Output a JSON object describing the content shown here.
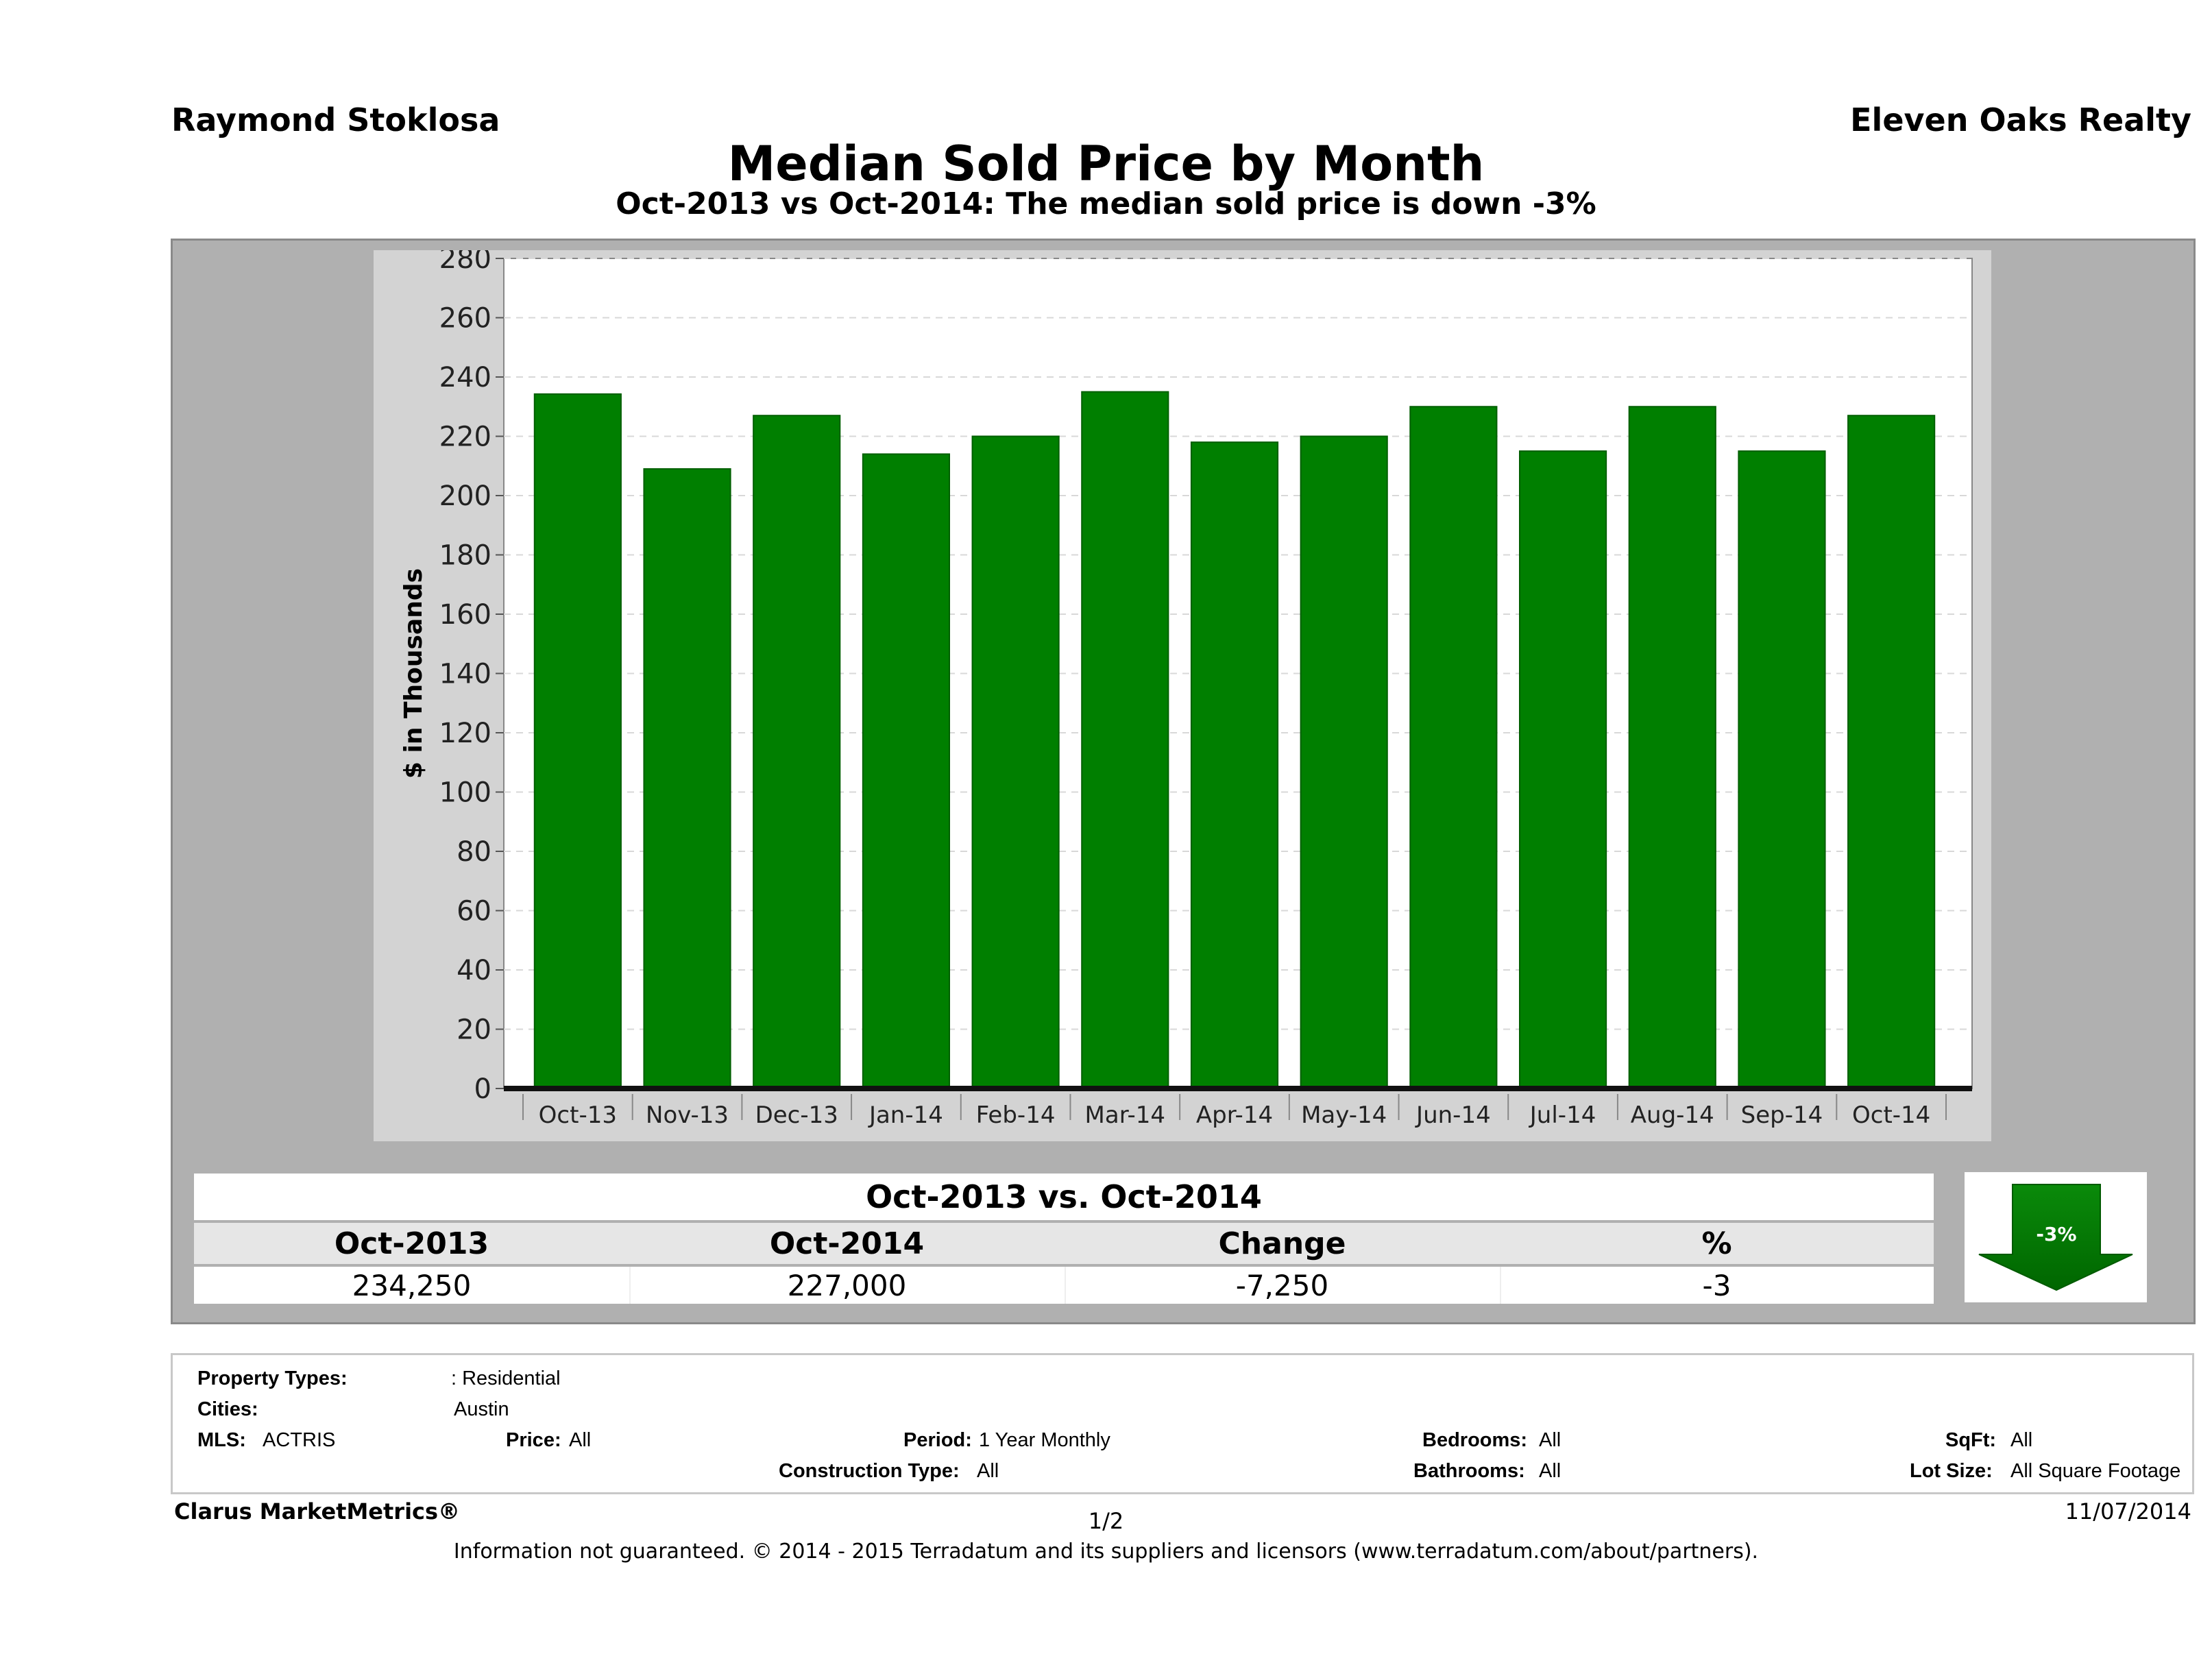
{
  "header": {
    "agent": "Raymond Stoklosa",
    "brokerage": "Eleven Oaks Realty",
    "title": "Median Sold Price by Month",
    "subtitle": "Oct-2013 vs Oct-2014: The median sold price is down -3%"
  },
  "colors": {
    "bar": "#007f00",
    "panel": "#b0b0b0",
    "plot_bg": "#ffffff"
  },
  "chart_data": {
    "type": "bar",
    "categories": [
      "Oct-13",
      "Nov-13",
      "Dec-13",
      "Jan-14",
      "Feb-14",
      "Mar-14",
      "Apr-14",
      "May-14",
      "Jun-14",
      "Jul-14",
      "Aug-14",
      "Sep-14",
      "Oct-14"
    ],
    "values": [
      234.25,
      209,
      227,
      214,
      220,
      235,
      218,
      220,
      230,
      215,
      230,
      215,
      227
    ],
    "ylabel": "$ in Thousands",
    "ylim": [
      0,
      280
    ],
    "yticks": [
      0,
      20,
      40,
      60,
      80,
      100,
      120,
      140,
      160,
      180,
      200,
      220,
      240,
      260,
      280
    ],
    "grid": true
  },
  "summary": {
    "title": "Oct-2013 vs. Oct-2014",
    "headers": [
      "Oct-2013",
      "Oct-2014",
      "Change",
      "%"
    ],
    "values": [
      "234,250",
      "227,000",
      "-7,250",
      "-3"
    ],
    "badge": "-3%",
    "trend_icon": "down-arrow-icon"
  },
  "criteria": {
    "property_types_label": "Property Types:",
    "property_types_value": ": Residential",
    "cities_label": "Cities:",
    "cities_value": "Austin",
    "mls_label": "MLS:",
    "mls_value": "ACTRIS",
    "price_label": "Price:",
    "price_value": "All",
    "period_label": "Period:",
    "period_value": "1 Year Monthly",
    "construction_label": "Construction Type:",
    "construction_value": "All",
    "bedrooms_label": "Bedrooms:",
    "bedrooms_value": "All",
    "bathrooms_label": "Bathrooms:",
    "bathrooms_value": "All",
    "sqft_label": "SqFt:",
    "sqft_value": "All",
    "lotsize_label": "Lot Size:",
    "lotsize_value": "All Square Footage"
  },
  "footer": {
    "brand": "Clarus MarketMetrics®",
    "page": "1/2",
    "date": "11/07/2014",
    "disclaimer": "Information not guaranteed. © 2014 - 2015 Terradatum and its suppliers and licensors (www.terradatum.com/about/partners)."
  }
}
